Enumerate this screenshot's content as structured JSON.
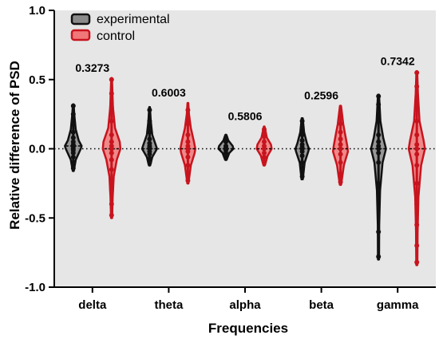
{
  "chart_data": {
    "type": "violin",
    "title": "",
    "xlabel": "Frequencies",
    "ylabel": "Relative difference of PSD",
    "ylim": [
      -1.0,
      1.0
    ],
    "yticks": [
      1.0,
      0.5,
      0.0,
      -0.5,
      -1.0
    ],
    "ytick_labels": [
      "1.0",
      "0.5",
      "0.0",
      "-0.5",
      "-1.0"
    ],
    "reference_line": 0.0,
    "legend_position": "top-left",
    "categories": [
      "delta",
      "theta",
      "alpha",
      "beta",
      "gamma"
    ],
    "p_values": [
      "0.3273",
      "0.6003",
      "0.5806",
      "0.2596",
      "0.7342"
    ],
    "series": [
      {
        "name": "experimental",
        "color": "#111111",
        "fill": "#8a8a8a",
        "groups": [
          {
            "min": -0.16,
            "max": 0.32,
            "median": 0.02,
            "points": [
              -0.14,
              -0.1,
              -0.06,
              -0.03,
              -0.01,
              0.0,
              0.01,
              0.02,
              0.03,
              0.05,
              0.08,
              0.12,
              0.18,
              0.25,
              0.31
            ],
            "profile": [
              [
                -0.16,
                0.04
              ],
              [
                -0.08,
                0.18
              ],
              [
                0.0,
                0.55
              ],
              [
                0.02,
                0.62
              ],
              [
                0.06,
                0.4
              ],
              [
                0.14,
                0.18
              ],
              [
                0.24,
                0.08
              ],
              [
                0.32,
                0.03
              ]
            ]
          },
          {
            "min": -0.12,
            "max": 0.3,
            "median": 0.0,
            "points": [
              -0.1,
              -0.07,
              -0.04,
              -0.02,
              0.0,
              0.01,
              0.02,
              0.04,
              0.07,
              0.12,
              0.2,
              0.28
            ],
            "profile": [
              [
                -0.12,
                0.05
              ],
              [
                -0.06,
                0.2
              ],
              [
                0.0,
                0.55
              ],
              [
                0.03,
                0.45
              ],
              [
                0.1,
                0.2
              ],
              [
                0.2,
                0.09
              ],
              [
                0.3,
                0.03
              ]
            ]
          },
          {
            "min": -0.08,
            "max": 0.1,
            "median": 0.0,
            "points": [
              -0.06,
              -0.03,
              -0.01,
              0.0,
              0.01,
              0.02,
              0.05,
              0.08
            ],
            "profile": [
              [
                -0.08,
                0.05
              ],
              [
                -0.03,
                0.25
              ],
              [
                0.0,
                0.55
              ],
              [
                0.02,
                0.5
              ],
              [
                0.06,
                0.18
              ],
              [
                0.1,
                0.04
              ]
            ]
          },
          {
            "min": -0.22,
            "max": 0.22,
            "median": 0.0,
            "points": [
              -0.2,
              -0.15,
              -0.1,
              -0.05,
              -0.02,
              0.0,
              0.01,
              0.03,
              0.06,
              0.1,
              0.15,
              0.2
            ],
            "profile": [
              [
                -0.22,
                0.05
              ],
              [
                -0.1,
                0.18
              ],
              [
                -0.02,
                0.45
              ],
              [
                0.0,
                0.5
              ],
              [
                0.04,
                0.35
              ],
              [
                0.12,
                0.14
              ],
              [
                0.22,
                0.04
              ]
            ]
          },
          {
            "min": -0.8,
            "max": 0.39,
            "median": 0.0,
            "points": [
              -0.78,
              -0.6,
              -0.3,
              -0.25,
              -0.1,
              -0.03,
              0.0,
              0.02,
              0.05,
              0.1,
              0.2,
              0.32,
              0.38
            ],
            "profile": [
              [
                -0.8,
                0.04
              ],
              [
                -0.55,
                0.05
              ],
              [
                -0.3,
                0.12
              ],
              [
                -0.1,
                0.3
              ],
              [
                0.0,
                0.55
              ],
              [
                0.08,
                0.35
              ],
              [
                0.2,
                0.14
              ],
              [
                0.39,
                0.04
              ]
            ]
          }
        ]
      },
      {
        "name": "control",
        "color": "#c8141e",
        "fill": "#f07878",
        "groups": [
          {
            "min": -0.5,
            "max": 0.51,
            "median": 0.0,
            "points": [
              -0.48,
              -0.4,
              -0.3,
              -0.22,
              -0.15,
              -0.08,
              -0.03,
              0.0,
              0.02,
              0.05,
              0.1,
              0.2,
              0.3,
              0.4,
              0.5
            ],
            "profile": [
              [
                -0.5,
                0.04
              ],
              [
                -0.35,
                0.08
              ],
              [
                -0.2,
                0.16
              ],
              [
                -0.08,
                0.38
              ],
              [
                0.0,
                0.65
              ],
              [
                0.05,
                0.6
              ],
              [
                0.15,
                0.25
              ],
              [
                0.3,
                0.1
              ],
              [
                0.51,
                0.03
              ]
            ]
          },
          {
            "min": -0.25,
            "max": 0.33,
            "median": 0.0,
            "points": [
              -0.23,
              -0.18,
              -0.12,
              -0.06,
              -0.02,
              0.0,
              0.02,
              0.05,
              0.1,
              0.18,
              0.28
            ],
            "profile": [
              [
                -0.25,
                0.04
              ],
              [
                -0.12,
                0.22
              ],
              [
                -0.03,
                0.5
              ],
              [
                0.0,
                0.55
              ],
              [
                0.05,
                0.45
              ],
              [
                0.15,
                0.22
              ],
              [
                0.25,
                0.08
              ],
              [
                0.33,
                0.03
              ]
            ]
          },
          {
            "min": -0.12,
            "max": 0.16,
            "median": 0.0,
            "points": [
              -0.1,
              -0.06,
              -0.03,
              0.0,
              0.02,
              0.05,
              0.09,
              0.14
            ],
            "profile": [
              [
                -0.12,
                0.05
              ],
              [
                -0.05,
                0.25
              ],
              [
                0.0,
                0.55
              ],
              [
                0.03,
                0.5
              ],
              [
                0.08,
                0.2
              ],
              [
                0.16,
                0.03
              ]
            ]
          },
          {
            "min": -0.26,
            "max": 0.31,
            "median": 0.0,
            "points": [
              -0.24,
              -0.18,
              -0.1,
              -0.04,
              0.0,
              0.03,
              0.07,
              0.12,
              0.18,
              0.25
            ],
            "profile": [
              [
                -0.26,
                0.05
              ],
              [
                -0.12,
                0.25
              ],
              [
                -0.02,
                0.55
              ],
              [
                0.02,
                0.5
              ],
              [
                0.1,
                0.35
              ],
              [
                0.18,
                0.2
              ],
              [
                0.31,
                0.04
              ]
            ]
          },
          {
            "min": -0.84,
            "max": 0.56,
            "median": 0.0,
            "points": [
              -0.82,
              -0.7,
              -0.55,
              -0.4,
              -0.25,
              -0.12,
              -0.04,
              0.0,
              0.03,
              0.1,
              0.2,
              0.32,
              0.45,
              0.55
            ],
            "profile": [
              [
                -0.84,
                0.04
              ],
              [
                -0.6,
                0.06
              ],
              [
                -0.35,
                0.12
              ],
              [
                -0.12,
                0.32
              ],
              [
                0.0,
                0.6
              ],
              [
                0.06,
                0.5
              ],
              [
                0.2,
                0.2
              ],
              [
                0.4,
                0.08
              ],
              [
                0.56,
                0.03
              ]
            ]
          }
        ]
      }
    ]
  }
}
